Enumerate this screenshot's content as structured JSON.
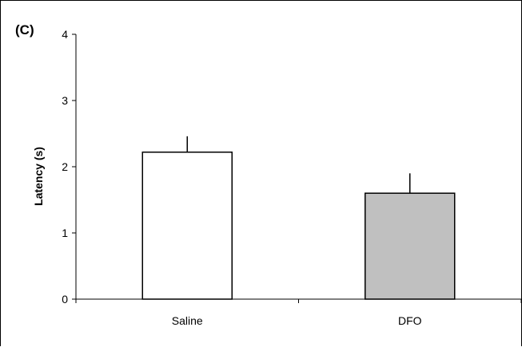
{
  "panel_label": "(C)",
  "chart_data": {
    "type": "bar",
    "title": "",
    "xlabel": "",
    "ylabel": "Latency (s)",
    "ylim": [
      0,
      4
    ],
    "yticks": [
      "0",
      "1",
      "2",
      "3",
      "4"
    ],
    "categories": [
      "Saline",
      "DFO"
    ],
    "series": [
      {
        "values": [
          2.22,
          1.6
        ],
        "errors": [
          0.24,
          0.3
        ],
        "colors": [
          "#ffffff",
          "#c0c0c0"
        ]
      }
    ],
    "grid": false,
    "legend": "none"
  }
}
